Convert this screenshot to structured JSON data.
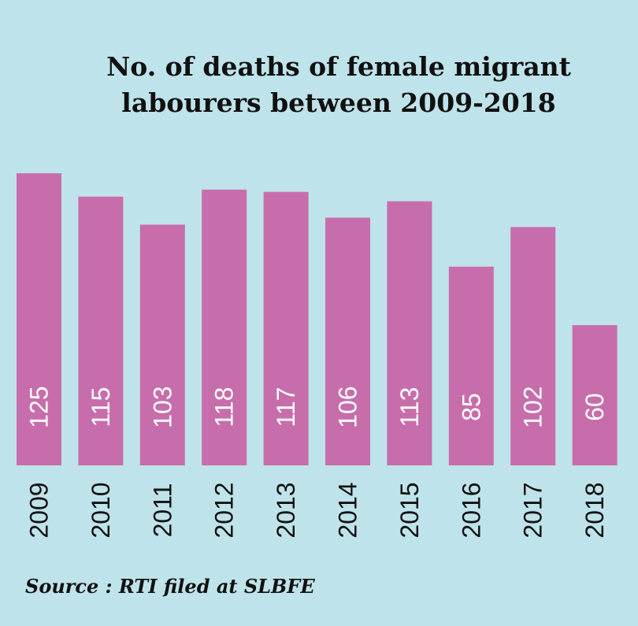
{
  "colors": {
    "background": "#bfe3ea",
    "bar": "#c86dab",
    "label": "#ffffff",
    "text": "#111111"
  },
  "chart_data": {
    "type": "bar",
    "title": "No. of deaths of female migrant labourers between 2009-2018",
    "title_lines": [
      "No. of deaths of female migrant",
      "labourers between 2009-2018"
    ],
    "categories": [
      "2009",
      "2010",
      "2011",
      "2012",
      "2013",
      "2014",
      "2015",
      "2016",
      "2017",
      "2018"
    ],
    "values": [
      125,
      115,
      103,
      118,
      117,
      106,
      113,
      85,
      102,
      60
    ],
    "xlabel": "",
    "ylabel": "",
    "ylim": [
      0,
      125
    ],
    "grid": false,
    "legend": "none",
    "data_labels": "vertical-inside-bottom",
    "source": "Source : RTI filed at SLBFE"
  }
}
